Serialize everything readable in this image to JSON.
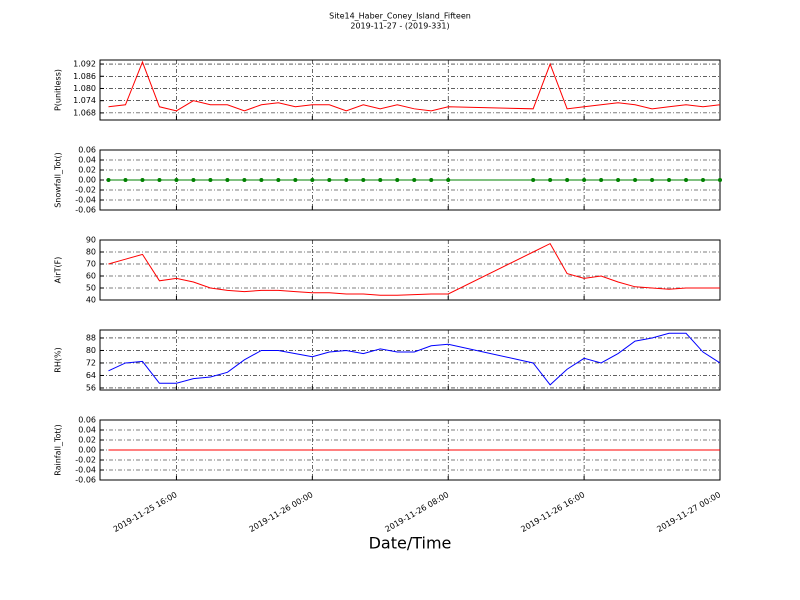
{
  "chart_data": [
    {
      "type": "line",
      "title": "Site14_Haber_Coney_Island_Fifteen",
      "subtitle": "2019-11-27 - (2019-331)",
      "ylabel": "P(unitless)",
      "color": "#ff0000",
      "grid": true,
      "xlim": [
        "2019-11-25 11:30",
        "2019-11-27 00:00"
      ],
      "x": [
        "2019-11-25 12:00",
        "2019-11-25 13:00",
        "2019-11-25 14:00",
        "2019-11-25 15:00",
        "2019-11-25 16:00",
        "2019-11-25 17:00",
        "2019-11-25 18:00",
        "2019-11-25 19:00",
        "2019-11-25 20:00",
        "2019-11-25 21:00",
        "2019-11-25 22:00",
        "2019-11-25 23:00",
        "2019-11-26 00:00",
        "2019-11-26 01:00",
        "2019-11-26 02:00",
        "2019-11-26 03:00",
        "2019-11-26 04:00",
        "2019-11-26 05:00",
        "2019-11-26 06:00",
        "2019-11-26 07:00",
        "2019-11-26 08:00",
        "2019-11-26 13:00",
        "2019-11-26 14:00",
        "2019-11-26 15:00",
        "2019-11-26 16:00",
        "2019-11-26 17:00",
        "2019-11-26 18:00",
        "2019-11-26 19:00",
        "2019-11-26 20:00",
        "2019-11-26 21:00",
        "2019-11-26 22:00",
        "2019-11-26 23:00",
        "2019-11-27 00:00"
      ],
      "values": [
        1.071,
        1.072,
        1.093,
        1.071,
        1.069,
        1.074,
        1.072,
        1.072,
        1.069,
        1.072,
        1.073,
        1.071,
        1.072,
        1.072,
        1.069,
        1.072,
        1.07,
        1.072,
        1.07,
        1.069,
        1.071,
        1.07,
        1.092,
        1.07,
        1.071,
        1.072,
        1.073,
        1.072,
        1.07,
        1.071,
        1.072,
        1.071,
        1.072
      ],
      "ylim": [
        1.0645,
        1.094
      ],
      "yticks": [
        1.068,
        1.074,
        {
          "value": 1.08,
          "label": "1.080"
        },
        1.086,
        1.092
      ]
    },
    {
      "type": "line",
      "ylabel": "Snowfall_Tot()",
      "color": "#008000",
      "marker": "o",
      "grid": true,
      "xlim": [
        "2019-11-25 11:30",
        "2019-11-27 00:00"
      ],
      "x": [
        "2019-11-25 12:00",
        "2019-11-25 13:00",
        "2019-11-25 14:00",
        "2019-11-25 15:00",
        "2019-11-25 16:00",
        "2019-11-25 17:00",
        "2019-11-25 18:00",
        "2019-11-25 19:00",
        "2019-11-25 20:00",
        "2019-11-25 21:00",
        "2019-11-25 22:00",
        "2019-11-25 23:00",
        "2019-11-26 00:00",
        "2019-11-26 01:00",
        "2019-11-26 02:00",
        "2019-11-26 03:00",
        "2019-11-26 04:00",
        "2019-11-26 05:00",
        "2019-11-26 06:00",
        "2019-11-26 07:00",
        "2019-11-26 08:00",
        "2019-11-26 13:00",
        "2019-11-26 14:00",
        "2019-11-26 15:00",
        "2019-11-26 16:00",
        "2019-11-26 17:00",
        "2019-11-26 18:00",
        "2019-11-26 19:00",
        "2019-11-26 20:00",
        "2019-11-26 21:00",
        "2019-11-26 22:00",
        "2019-11-26 23:00",
        "2019-11-27 00:00"
      ],
      "values": [
        0,
        0,
        0,
        0,
        0,
        0,
        0,
        0,
        0,
        0,
        0,
        0,
        0,
        0,
        0,
        0,
        0,
        0,
        0,
        0,
        0,
        0,
        0,
        0,
        0,
        0,
        0,
        0,
        0,
        0,
        0,
        0,
        0
      ],
      "ylim": [
        -0.06,
        0.06
      ],
      "yticks": [
        {
          "value": -0.06,
          "label": "-0.06"
        },
        {
          "value": -0.04,
          "label": "-0.04"
        },
        {
          "value": -0.02,
          "label": "-0.02"
        },
        {
          "value": 0,
          "label": "0.00"
        },
        0.02,
        0.04,
        0.06
      ]
    },
    {
      "type": "line",
      "ylabel": "AirT(F)",
      "color": "#ff0000",
      "grid": true,
      "xlim": [
        "2019-11-25 11:30",
        "2019-11-27 00:00"
      ],
      "x": [
        "2019-11-25 12:00",
        "2019-11-25 13:00",
        "2019-11-25 14:00",
        "2019-11-25 15:00",
        "2019-11-25 16:00",
        "2019-11-25 17:00",
        "2019-11-25 18:00",
        "2019-11-25 19:00",
        "2019-11-25 20:00",
        "2019-11-25 21:00",
        "2019-11-25 22:00",
        "2019-11-25 23:00",
        "2019-11-26 00:00",
        "2019-11-26 01:00",
        "2019-11-26 02:00",
        "2019-11-26 03:00",
        "2019-11-26 04:00",
        "2019-11-26 05:00",
        "2019-11-26 06:00",
        "2019-11-26 07:00",
        "2019-11-26 08:00",
        "2019-11-26 13:00",
        "2019-11-26 14:00",
        "2019-11-26 15:00",
        "2019-11-26 16:00",
        "2019-11-26 17:00",
        "2019-11-26 18:00",
        "2019-11-26 19:00",
        "2019-11-26 20:00",
        "2019-11-26 21:00",
        "2019-11-26 22:00",
        "2019-11-26 23:00",
        "2019-11-27 00:00"
      ],
      "values": [
        70,
        74,
        78,
        56,
        58,
        55,
        50,
        48,
        47,
        48,
        48,
        47,
        46,
        46,
        45,
        45,
        44,
        44,
        44.5,
        45,
        45,
        80,
        87,
        62,
        58,
        60,
        55,
        51,
        50,
        49,
        50,
        50,
        50
      ],
      "ylim": [
        40,
        90
      ],
      "yticks": [
        40,
        50,
        60,
        70,
        80,
        90
      ]
    },
    {
      "type": "line",
      "ylabel": "RH(%)",
      "color": "#0000ff",
      "grid": true,
      "xlim": [
        "2019-11-25 11:30",
        "2019-11-27 00:00"
      ],
      "x": [
        "2019-11-25 12:00",
        "2019-11-25 13:00",
        "2019-11-25 14:00",
        "2019-11-25 15:00",
        "2019-11-25 16:00",
        "2019-11-25 17:00",
        "2019-11-25 18:00",
        "2019-11-25 19:00",
        "2019-11-25 20:00",
        "2019-11-25 21:00",
        "2019-11-25 22:00",
        "2019-11-25 23:00",
        "2019-11-26 00:00",
        "2019-11-26 01:00",
        "2019-11-26 02:00",
        "2019-11-26 03:00",
        "2019-11-26 04:00",
        "2019-11-26 05:00",
        "2019-11-26 06:00",
        "2019-11-26 07:00",
        "2019-11-26 08:00",
        "2019-11-26 13:00",
        "2019-11-26 14:00",
        "2019-11-26 15:00",
        "2019-11-26 16:00",
        "2019-11-26 17:00",
        "2019-11-26 18:00",
        "2019-11-26 19:00",
        "2019-11-26 20:00",
        "2019-11-26 21:00",
        "2019-11-26 22:00",
        "2019-11-26 23:00",
        "2019-11-27 00:00"
      ],
      "values": [
        67,
        72,
        73,
        59,
        59,
        62,
        63,
        66,
        74,
        80,
        80,
        78,
        76,
        79,
        80,
        78,
        81,
        79,
        79,
        83,
        84,
        72,
        58,
        68,
        75,
        72,
        78,
        86,
        88,
        91,
        91,
        79,
        72
      ],
      "ylim": [
        54.7,
        93.1
      ],
      "yticks": [
        56,
        64,
        72,
        80,
        88
      ]
    },
    {
      "type": "line",
      "ylabel": "Rainfall_Tot()",
      "xlabel": "Date/Time",
      "color": "#ff0000",
      "grid": true,
      "xlim": [
        "2019-11-25 11:30",
        "2019-11-27 00:00"
      ],
      "xticks": [
        "2019-11-25 16:00",
        "2019-11-26 00:00",
        "2019-11-26 08:00",
        "2019-11-26 16:00",
        "2019-11-27 00:00"
      ],
      "x": [
        "2019-11-25 12:00",
        "2019-11-25 13:00",
        "2019-11-25 14:00",
        "2019-11-25 15:00",
        "2019-11-25 16:00",
        "2019-11-25 17:00",
        "2019-11-25 18:00",
        "2019-11-25 19:00",
        "2019-11-25 20:00",
        "2019-11-25 21:00",
        "2019-11-25 22:00",
        "2019-11-25 23:00",
        "2019-11-26 00:00",
        "2019-11-26 01:00",
        "2019-11-26 02:00",
        "2019-11-26 03:00",
        "2019-11-26 04:00",
        "2019-11-26 05:00",
        "2019-11-26 06:00",
        "2019-11-26 07:00",
        "2019-11-26 08:00",
        "2019-11-26 13:00",
        "2019-11-26 14:00",
        "2019-11-26 15:00",
        "2019-11-26 16:00",
        "2019-11-26 17:00",
        "2019-11-26 18:00",
        "2019-11-26 19:00",
        "2019-11-26 20:00",
        "2019-11-26 21:00",
        "2019-11-26 22:00",
        "2019-11-26 23:00",
        "2019-11-27 00:00"
      ],
      "values": [
        0,
        0,
        0,
        0,
        0,
        0,
        0,
        0,
        0,
        0,
        0,
        0,
        0,
        0,
        0,
        0,
        0,
        0,
        0,
        0,
        0,
        0,
        0,
        0,
        0,
        0,
        0,
        0,
        0,
        0,
        0,
        0,
        0
      ],
      "ylim": [
        -0.06,
        0.06
      ],
      "yticks": [
        {
          "value": -0.06,
          "label": "-0.06"
        },
        {
          "value": -0.04,
          "label": "-0.04"
        },
        {
          "value": -0.02,
          "label": "-0.02"
        },
        {
          "value": 0,
          "label": "0.00"
        },
        0.02,
        0.04,
        0.06
      ]
    }
  ]
}
